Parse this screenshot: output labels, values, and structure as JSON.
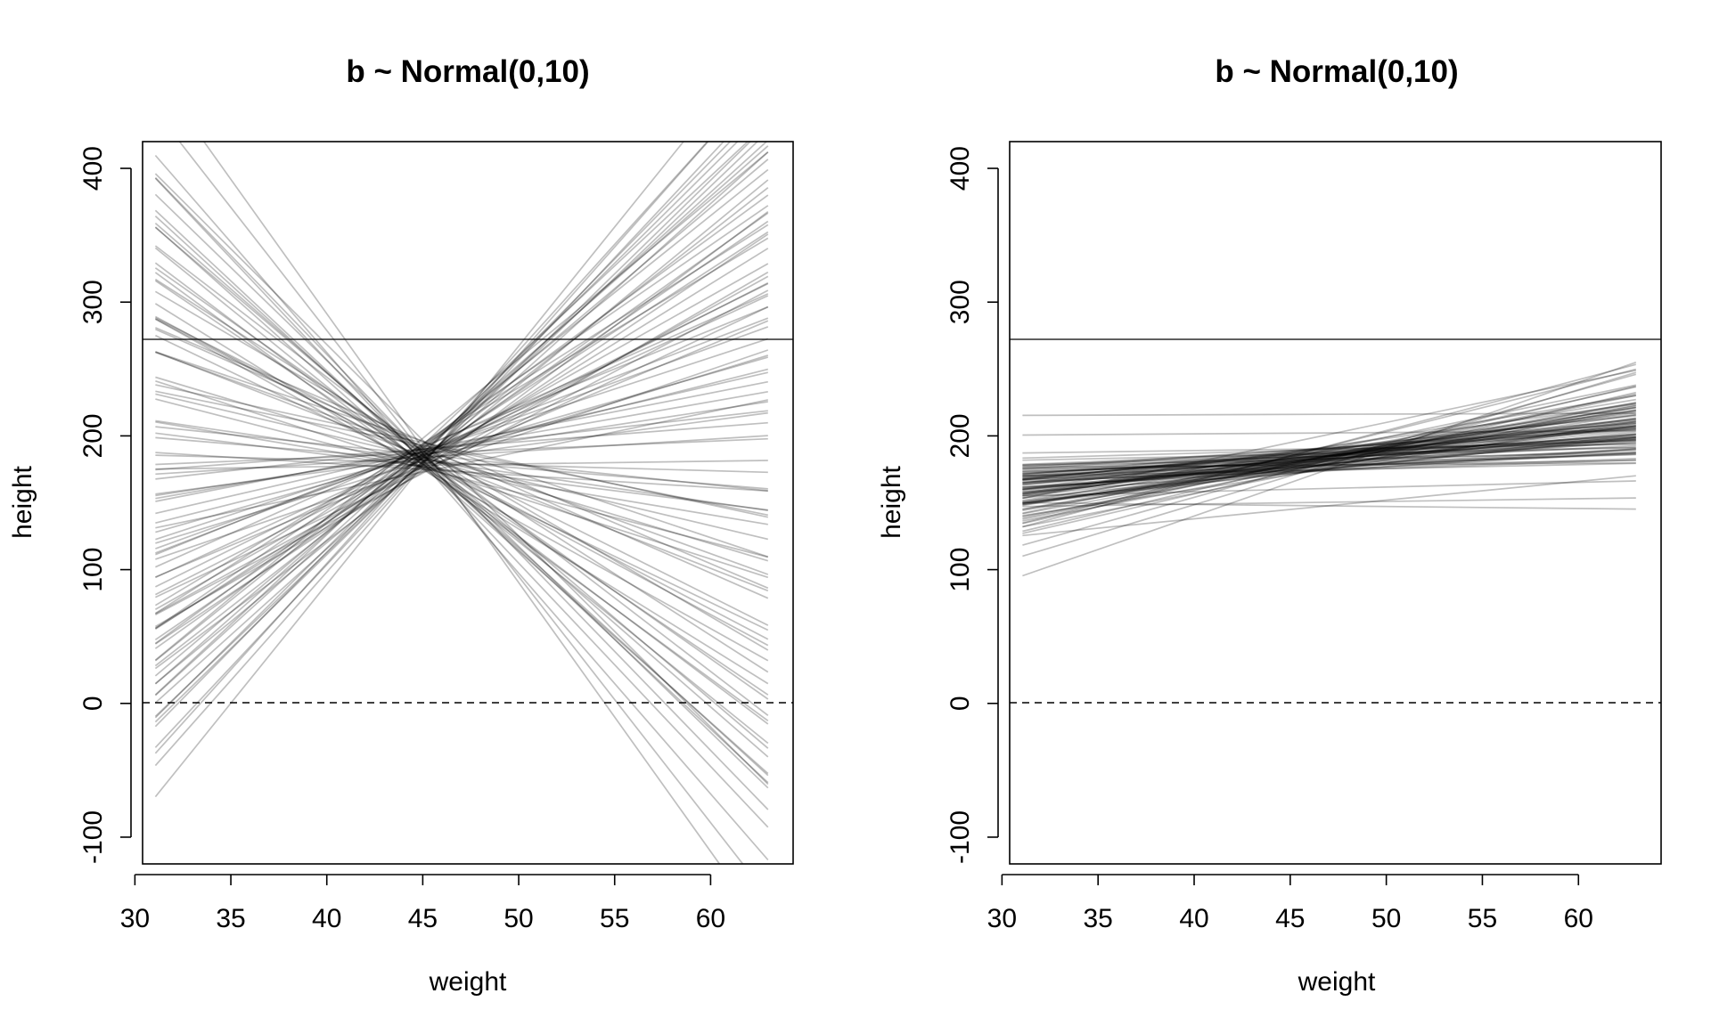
{
  "chart_data": [
    {
      "type": "line",
      "title": "b ~ Normal(0,10)",
      "xlabel": "weight",
      "ylabel": "height",
      "xlim": [
        30.4,
        64.3
      ],
      "ylim": [
        -120,
        420
      ],
      "xticks": [
        30,
        35,
        40,
        45,
        50,
        55,
        60
      ],
      "yticks": [
        -100,
        0,
        100,
        200,
        300,
        400
      ],
      "reference_lines": [
        {
          "y": 0,
          "style": "dashed"
        },
        {
          "y": 272,
          "style": "solid"
        }
      ],
      "x_range": [
        31.07,
        62.99
      ],
      "center_weight": 44.99,
      "series_encoding": "each line = [intercept a at center weight, slope b]; height = a + b*(weight - center)",
      "series": [
        [
          193,
          13.4
        ],
        [
          184,
          9.8
        ],
        [
          186,
          7.1
        ],
        [
          190,
          12.6
        ],
        [
          181,
          4.4
        ],
        [
          176,
          -10.5
        ],
        [
          198,
          11.9
        ],
        [
          173,
          8.3
        ],
        [
          189,
          -9.2
        ],
        [
          185,
          3.6
        ],
        [
          180,
          15.3
        ],
        [
          196,
          -4.8
        ],
        [
          178,
          6.0
        ],
        [
          187,
          -13.9
        ],
        [
          175,
          10.7
        ],
        [
          192,
          -6.3
        ],
        [
          183,
          1.9
        ],
        [
          179,
          -11.6
        ],
        [
          188,
          5.2
        ],
        [
          182,
          -7.7
        ],
        [
          194,
          9.1
        ],
        [
          177,
          -2.4
        ],
        [
          186,
          14.6
        ],
        [
          181,
          -15.2
        ],
        [
          190,
          2.8
        ],
        [
          172,
          7.6
        ],
        [
          195,
          -3.1
        ],
        [
          184,
          11.2
        ],
        [
          178,
          -12.8
        ],
        [
          187,
          0.6
        ],
        [
          180,
          8.9
        ],
        [
          191,
          -8.4
        ],
        [
          176,
          4.9
        ],
        [
          185,
          -5.6
        ],
        [
          189,
          12.1
        ],
        [
          182,
          -1.2
        ],
        [
          174,
          6.8
        ],
        [
          197,
          -14.3
        ],
        [
          183,
          10.2
        ],
        [
          179,
          -6.9
        ],
        [
          188,
          3.3
        ],
        [
          185,
          -10.1
        ],
        [
          181,
          14.0
        ],
        [
          193,
          -2.9
        ],
        [
          177,
          7.9
        ],
        [
          186,
          -12.2
        ],
        [
          190,
          1.1
        ],
        [
          178,
          9.6
        ],
        [
          184,
          -4.3
        ],
        [
          192,
          5.8
        ],
        [
          175,
          -8.9
        ],
        [
          187,
          13.0
        ],
        [
          180,
          -0.4
        ],
        [
          189,
          -11.0
        ],
        [
          183,
          8.1
        ],
        [
          176,
          -3.7
        ],
        [
          191,
          6.4
        ],
        [
          182,
          -13.4
        ],
        [
          186,
          2.2
        ],
        [
          179,
          11.8
        ],
        [
          188,
          -7.2
        ],
        [
          185,
          4.1
        ],
        [
          181,
          -9.7
        ],
        [
          194,
          9.9
        ],
        [
          177,
          -1.8
        ],
        [
          184,
          15.9
        ],
        [
          190,
          -5.2
        ],
        [
          173,
          3.0
        ],
        [
          187,
          -14.8
        ],
        [
          183,
          7.3
        ],
        [
          196,
          -6.1
        ],
        [
          180,
          12.9
        ],
        [
          182,
          -2.1
        ],
        [
          178,
          0.2
        ],
        [
          189,
          5.5
        ],
        [
          185,
          -12.5
        ],
        [
          191,
          10.5
        ],
        [
          176,
          -8.0
        ],
        [
          188,
          2.5
        ],
        [
          181,
          13.7
        ],
        [
          184,
          -3.4
        ],
        [
          186,
          6.6
        ],
        [
          179,
          -10.8
        ],
        [
          193,
          8.6
        ],
        [
          175,
          -0.9
        ],
        [
          187,
          14.2
        ],
        [
          183,
          -7.5
        ],
        [
          190,
          1.6
        ],
        [
          180,
          -16.5
        ],
        [
          185,
          9.3
        ],
        [
          177,
          -4.6
        ],
        [
          192,
          11.5
        ],
        [
          182,
          -13.1
        ],
        [
          188,
          4.7
        ],
        [
          186,
          -1.5
        ],
        [
          178,
          17.8
        ],
        [
          191,
          -20.1
        ],
        [
          184,
          0.9
        ],
        [
          179,
          16.2
        ],
        [
          187,
          -18.4
        ]
      ]
    },
    {
      "type": "line",
      "title": "b ~ Normal(0,10)",
      "xlabel": "weight",
      "ylabel": "height",
      "xlim": [
        30.4,
        64.3
      ],
      "ylim": [
        -120,
        420
      ],
      "xticks": [
        30,
        35,
        40,
        45,
        50,
        55,
        60
      ],
      "yticks": [
        -100,
        0,
        100,
        200,
        300,
        400
      ],
      "reference_lines": [
        {
          "y": 0,
          "style": "dashed"
        },
        {
          "y": 272,
          "style": "solid"
        }
      ],
      "x_range": [
        31.07,
        62.99
      ],
      "center_weight": 44.99,
      "series_encoding": "each line = [intercept a at center weight, slope b]; height = a + b*(weight - center)",
      "series": [
        [
          180,
          1.2
        ],
        [
          176,
          0.8
        ],
        [
          185,
          2.0
        ],
        [
          172,
          1.6
        ],
        [
          189,
          0.4
        ],
        [
          178,
          2.9
        ],
        [
          183,
          1.0
        ],
        [
          174,
          0.3
        ],
        [
          181,
          1.8
        ],
        [
          187,
          0.6
        ],
        [
          171,
          2.2
        ],
        [
          179,
          1.4
        ],
        [
          184,
          0.9
        ],
        [
          176,
          3.4
        ],
        [
          190,
          0.2
        ],
        [
          177,
          1.1
        ],
        [
          182,
          1.7
        ],
        [
          173,
          0.5
        ],
        [
          186,
          1.3
        ],
        [
          180,
          2.5
        ],
        [
          175,
          0.7
        ],
        [
          183,
          1.9
        ],
        [
          178,
          0.1
        ],
        [
          188,
          1.5
        ],
        [
          174,
          2.7
        ],
        [
          181,
          0.9
        ],
        [
          185,
          1.2
        ],
        [
          177,
          2.0
        ],
        [
          179,
          0.4
        ],
        [
          184,
          3.0
        ],
        [
          172,
          1.0
        ],
        [
          187,
          1.6
        ],
        [
          176,
          0.6
        ],
        [
          180,
          2.3
        ],
        [
          182,
          1.3
        ],
        [
          175,
          1.8
        ],
        [
          186,
          0.3
        ],
        [
          178,
          2.6
        ],
        [
          183,
          0.8
        ],
        [
          173,
          1.4
        ],
        [
          181,
          2.1
        ],
        [
          189,
          1.0
        ],
        [
          177,
          0.5
        ],
        [
          180,
          1.7
        ],
        [
          184,
          2.4
        ],
        [
          174,
          0.9
        ],
        [
          185,
          1.1
        ],
        [
          179,
          3.2
        ],
        [
          182,
          0.7
        ],
        [
          176,
          1.5
        ],
        [
          188,
          2.0
        ],
        [
          178,
          0.2
        ],
        [
          183,
          1.3
        ],
        [
          171,
          2.8
        ],
        [
          181,
          1.0
        ],
        [
          186,
          0.6
        ],
        [
          175,
          1.9
        ],
        [
          180,
          2.2
        ],
        [
          184,
          0.4
        ],
        [
          177,
          1.2
        ],
        [
          179,
          2.5
        ],
        [
          187,
          1.4
        ],
        [
          173,
          0.8
        ],
        [
          182,
          1.6
        ],
        [
          185,
          3.6
        ],
        [
          176,
          1.1
        ],
        [
          180,
          0.5
        ],
        [
          183,
          2.0
        ],
        [
          178,
          1.3
        ],
        [
          174,
          4.0
        ],
        [
          189,
          0.9
        ],
        [
          181,
          1.7
        ],
        [
          177,
          2.3
        ],
        [
          184,
          0.6
        ],
        [
          172,
          1.5
        ],
        [
          186,
          1.1
        ],
        [
          179,
          2.9
        ],
        [
          182,
          0.3
        ],
        [
          175,
          1.8
        ],
        [
          188,
          1.2
        ],
        [
          180,
          0.7
        ],
        [
          176,
          2.6
        ],
        [
          183,
          1.4
        ],
        [
          178,
          2.1
        ],
        [
          185,
          0.8
        ],
        [
          173,
          3.3
        ],
        [
          181,
          1.0
        ],
        [
          179,
          1.6
        ],
        [
          187,
          2.4
        ],
        [
          174,
          0.5
        ],
        [
          202,
          0.1
        ],
        [
          216,
          0.05
        ],
        [
          148,
          -0.15
        ],
        [
          165,
          5.0
        ],
        [
          170,
          4.3
        ],
        [
          195,
          3.0
        ],
        [
          150,
          0.2
        ],
        [
          145,
          1.4
        ],
        [
          160,
          0.35
        ],
        [
          185,
          3.8
        ]
      ]
    }
  ]
}
